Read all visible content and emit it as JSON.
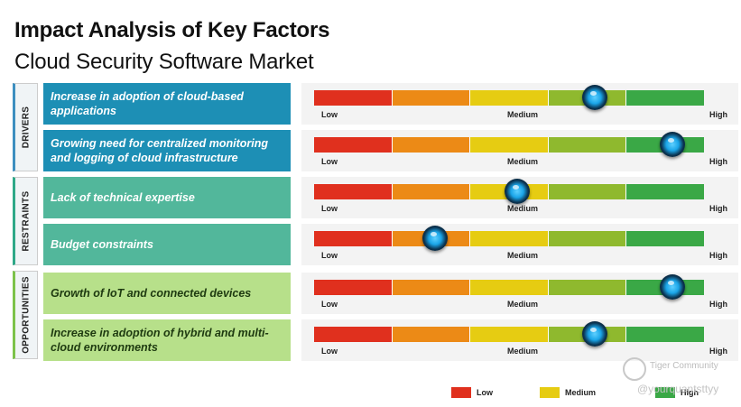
{
  "title": "Impact Analysis of Key Factors",
  "subtitle": "Cloud Security Software Market",
  "categories": [
    {
      "id": "drivers",
      "label": "DRIVERS"
    },
    {
      "id": "restraints",
      "label": "RESTRAINTS"
    },
    {
      "id": "opportunities",
      "label": "OPPORTUNITIES"
    }
  ],
  "scale_labels": {
    "low": "Low",
    "medium": "Medium",
    "high": "High"
  },
  "segment_colors": [
    "#e0301e",
    "#ec8a16",
    "#e6cc12",
    "#8fb92e",
    "#3aa846"
  ],
  "chart_data": {
    "type": "table",
    "title": "Impact Analysis of Key Factors",
    "subtitle": "Cloud Security Software Market",
    "scale": [
      "Low",
      "Medium",
      "High"
    ],
    "scale_range": [
      0,
      5
    ],
    "rows": [
      {
        "category": "drivers",
        "factor": "Increase in adoption of cloud-based applications",
        "impact": 3.6
      },
      {
        "category": "drivers",
        "factor": "Growing need for centralized monitoring and logging of cloud infrastructure",
        "impact": 4.6
      },
      {
        "category": "restraints",
        "factor": "Lack of technical expertise",
        "impact": 2.6
      },
      {
        "category": "restraints",
        "factor": "Budget constraints",
        "impact": 1.55
      },
      {
        "category": "opportunities",
        "factor": "Growth of IoT and connected devices",
        "impact": 4.6
      },
      {
        "category": "opportunities",
        "factor": "Increase in adoption of hybrid and multi-cloud environments",
        "impact": 3.6
      }
    ]
  },
  "legend": [
    {
      "label": "Low",
      "color": "#e0301e"
    },
    {
      "label": "Medium",
      "color": "#e6cc12"
    },
    {
      "label": "High",
      "color": "#3aa846"
    }
  ],
  "watermark": {
    "line1": "Tiger Community",
    "line2": "@yourquantsttyy"
  }
}
